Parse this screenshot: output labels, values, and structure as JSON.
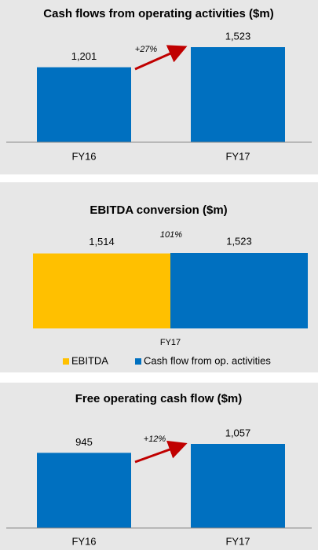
{
  "chart_data": [
    {
      "type": "bar",
      "title": "Cash flows from operating activities ($m)",
      "categories": [
        "FY16",
        "FY17"
      ],
      "values": [
        1201,
        1523
      ],
      "value_labels": [
        "1,201",
        "1,523"
      ],
      "color": "#0070c0",
      "annotation": "+27%"
    },
    {
      "type": "grouped-bar",
      "title": "EBITDA conversion ($m)",
      "categories": [
        "FY17"
      ],
      "series": [
        {
          "name": "EBITDA",
          "color": "#ffc000",
          "values": [
            1514
          ],
          "value_labels": [
            "1,514"
          ]
        },
        {
          "name": "Cash flow from op. activities",
          "color": "#0070c0",
          "values": [
            1523
          ],
          "value_labels": [
            "1,523"
          ]
        }
      ],
      "annotation": "101%",
      "legend": "bottom"
    },
    {
      "type": "bar",
      "title": "Free operating cash flow ($m)",
      "categories": [
        "FY16",
        "FY17"
      ],
      "values": [
        945,
        1057
      ],
      "value_labels": [
        "945",
        "1,057"
      ],
      "color": "#0070c0",
      "annotation": "+12%"
    }
  ]
}
